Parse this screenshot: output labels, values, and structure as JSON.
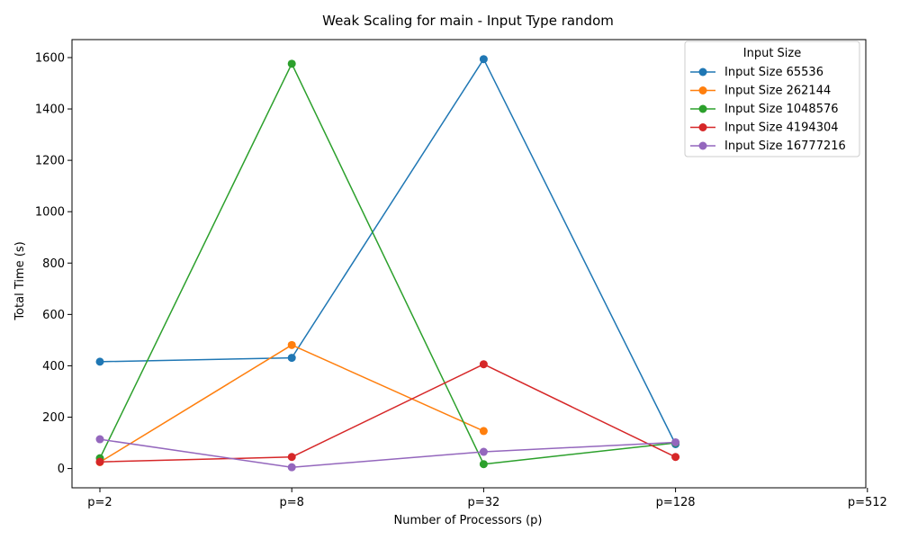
{
  "chart_data": {
    "type": "line",
    "title": "Weak Scaling for main - Input Type random",
    "xlabel": "Number of Processors (p)",
    "ylabel": "Total Time (s)",
    "categories": [
      "p=2",
      "p=8",
      "p=32",
      "p=128",
      "p=512"
    ],
    "ylim": [
      -75,
      1670
    ],
    "yticks": [
      0,
      200,
      400,
      600,
      800,
      1000,
      1200,
      1400,
      1600
    ],
    "grid": false,
    "legend": {
      "title": "Input Size",
      "placement": "top-right"
    },
    "series": [
      {
        "name": "Input Size 65536",
        "color": "#1f77b4",
        "values": [
          416,
          431,
          1594,
          95,
          null
        ]
      },
      {
        "name": "Input Size 262144",
        "color": "#ff7f0e",
        "values": [
          25,
          481,
          146,
          null,
          null
        ]
      },
      {
        "name": "Input Size 1048576",
        "color": "#2ca02c",
        "values": [
          40,
          1576,
          17,
          100,
          null
        ]
      },
      {
        "name": "Input Size 4194304",
        "color": "#d62728",
        "values": [
          26,
          45,
          406,
          45,
          null
        ]
      },
      {
        "name": "Input Size 16777216",
        "color": "#9467bd",
        "values": [
          114,
          5,
          65,
          102,
          null
        ]
      }
    ]
  }
}
